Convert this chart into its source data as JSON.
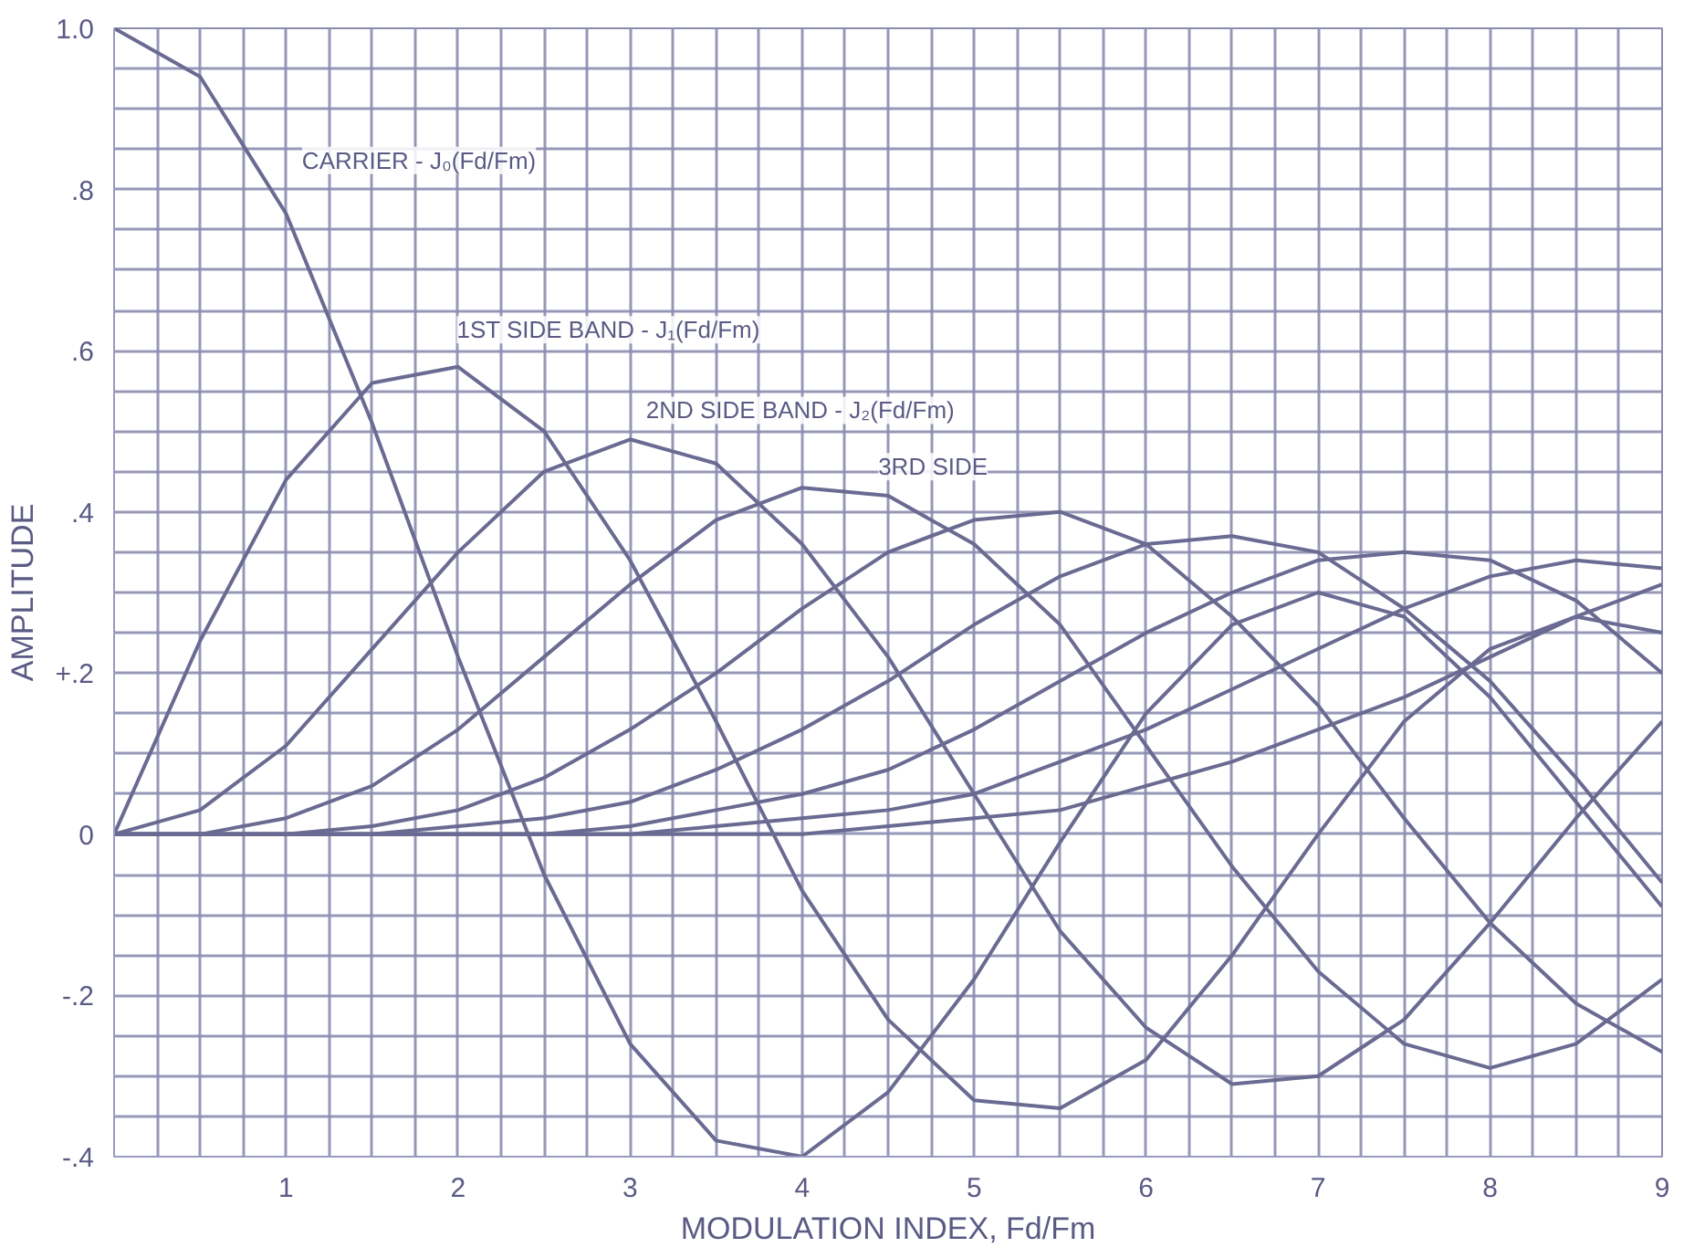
{
  "chart_data": {
    "type": "line",
    "xlabel": "MODULATION INDEX, Fd/Fm",
    "ylabel": "AMPLITUDE",
    "x": [
      0,
      0.5,
      1,
      1.5,
      2,
      2.5,
      3,
      3.5,
      4,
      4.5,
      5,
      5.5,
      6,
      6.5,
      7,
      7.5,
      8,
      8.5,
      9
    ],
    "series": [
      {
        "color": "#6a6a92",
        "values": [
          1.0,
          0.94,
          0.77,
          0.51,
          0.22,
          -0.05,
          -0.26,
          -0.38,
          -0.4,
          -0.32,
          -0.18,
          -0.01,
          0.15,
          0.26,
          0.3,
          0.27,
          0.17,
          0.04,
          -0.09
        ]
      },
      {
        "color": "#6a6a92",
        "values": [
          0,
          0.24,
          0.44,
          0.56,
          0.58,
          0.5,
          0.34,
          0.14,
          -0.07,
          -0.23,
          -0.33,
          -0.34,
          -0.28,
          -0.15,
          0.0,
          0.14,
          0.23,
          0.27,
          0.25
        ]
      },
      {
        "color": "#6a6a92",
        "values": [
          0,
          0.03,
          0.11,
          0.23,
          0.35,
          0.45,
          0.49,
          0.46,
          0.36,
          0.22,
          0.05,
          -0.12,
          -0.24,
          -0.31,
          -0.3,
          -0.23,
          -0.11,
          0.02,
          0.14
        ]
      },
      {
        "color": "#6a6a92",
        "values": [
          0,
          0.0,
          0.02,
          0.06,
          0.13,
          0.22,
          0.31,
          0.39,
          0.43,
          0.42,
          0.36,
          0.26,
          0.11,
          -0.04,
          -0.17,
          -0.26,
          -0.29,
          -0.26,
          -0.18
        ]
      },
      {
        "color": "#6a6a92",
        "values": [
          0,
          0,
          0.0,
          0.01,
          0.03,
          0.07,
          0.13,
          0.2,
          0.28,
          0.35,
          0.39,
          0.4,
          0.36,
          0.27,
          0.16,
          0.02,
          -0.11,
          -0.21,
          -0.27
        ]
      },
      {
        "color": "#6a6a92",
        "values": [
          0,
          0,
          0,
          0.0,
          0.01,
          0.02,
          0.04,
          0.08,
          0.13,
          0.19,
          0.26,
          0.32,
          0.36,
          0.37,
          0.35,
          0.28,
          0.19,
          0.07,
          -0.06
        ]
      },
      {
        "color": "#6a6a92",
        "values": [
          0,
          0,
          0,
          0,
          0.0,
          0.0,
          0.01,
          0.03,
          0.05,
          0.08,
          0.13,
          0.19,
          0.25,
          0.3,
          0.34,
          0.35,
          0.34,
          0.29,
          0.2
        ]
      },
      {
        "color": "#6a6a92",
        "values": [
          0,
          0,
          0,
          0,
          0,
          0.0,
          0.0,
          0.01,
          0.02,
          0.03,
          0.05,
          0.09,
          0.13,
          0.18,
          0.23,
          0.28,
          0.32,
          0.34,
          0.33
        ]
      },
      {
        "color": "#6a6a92",
        "values": [
          0,
          0,
          0,
          0,
          0,
          0,
          0.0,
          0.0,
          0.0,
          0.01,
          0.02,
          0.03,
          0.06,
          0.09,
          0.13,
          0.17,
          0.22,
          0.27,
          0.31
        ]
      }
    ],
    "annotations": [
      "CARRIER - J₀(Fd/Fm)",
      "1ST SIDE BAND - J₁(Fd/Fm)",
      "2ND SIDE BAND - J₂(Fd/Fm)",
      "3RD SIDE"
    ],
    "xlim": [
      0,
      9
    ],
    "ylim": [
      -0.4,
      1.0
    ],
    "xticks": [
      {
        "value": 0,
        "label": null
      },
      {
        "value": 0.25,
        "label": null
      },
      {
        "value": 0.5,
        "label": null
      },
      {
        "value": 0.75,
        "label": null
      },
      1,
      {
        "value": 1.25,
        "label": null
      },
      {
        "value": 1.5,
        "label": null
      },
      {
        "value": 1.75,
        "label": null
      },
      2,
      {
        "value": 2.25,
        "label": null
      },
      {
        "value": 2.5,
        "label": null
      },
      {
        "value": 2.75,
        "label": null
      },
      3,
      {
        "value": 3.25,
        "label": null
      },
      {
        "value": 3.5,
        "label": null
      },
      {
        "value": 3.75,
        "label": null
      },
      4,
      {
        "value": 4.25,
        "label": null
      },
      {
        "value": 4.5,
        "label": null
      },
      {
        "value": 4.75,
        "label": null
      },
      5,
      {
        "value": 5.25,
        "label": null
      },
      {
        "value": 5.5,
        "label": null
      },
      {
        "value": 5.75,
        "label": null
      },
      6,
      {
        "value": 6.25,
        "label": null
      },
      {
        "value": 6.5,
        "label": null
      },
      {
        "value": 6.75,
        "label": null
      },
      7,
      {
        "value": 7.25,
        "label": null
      },
      {
        "value": 7.5,
        "label": null
      },
      {
        "value": 7.75,
        "label": null
      },
      8,
      {
        "value": 8.25,
        "label": null
      },
      {
        "value": 8.5,
        "label": null
      },
      {
        "value": 8.75,
        "label": null
      },
      9
    ],
    "yticks": [
      {
        "value": -0.4,
        "label": "-.4"
      },
      {
        "value": -0.35,
        "label": null
      },
      {
        "value": -0.3,
        "label": null
      },
      {
        "value": -0.25,
        "label": null
      },
      {
        "value": -0.2,
        "label": "-.2"
      },
      {
        "value": -0.15,
        "label": null
      },
      {
        "value": -0.1,
        "label": null
      },
      {
        "value": -0.05,
        "label": null
      },
      0,
      {
        "value": 0.05,
        "label": null
      },
      {
        "value": 0.1,
        "label": null
      },
      {
        "value": 0.15,
        "label": null
      },
      {
        "value": 0.2,
        "label": "+.2"
      },
      {
        "value": 0.25,
        "label": null
      },
      {
        "value": 0.3,
        "label": null
      },
      {
        "value": 0.35,
        "label": null
      },
      {
        "value": 0.4,
        "label": ".4"
      },
      {
        "value": 0.45,
        "label": null
      },
      {
        "value": 0.5,
        "label": null
      },
      {
        "value": 0.55,
        "label": null
      },
      {
        "value": 0.6,
        "label": ".6"
      },
      {
        "value": 0.65,
        "label": null
      },
      {
        "value": 0.7,
        "label": null
      },
      {
        "value": 0.75,
        "label": null
      },
      {
        "value": 0.8,
        "label": ".8"
      },
      {
        "value": 0.85,
        "label": null
      },
      {
        "value": 0.9,
        "label": null
      },
      {
        "value": 0.95,
        "label": null
      },
      {
        "value": 1.0,
        "label": "1.0"
      }
    ],
    "grid": true,
    "marker": "none",
    "line_style": "solid"
  }
}
